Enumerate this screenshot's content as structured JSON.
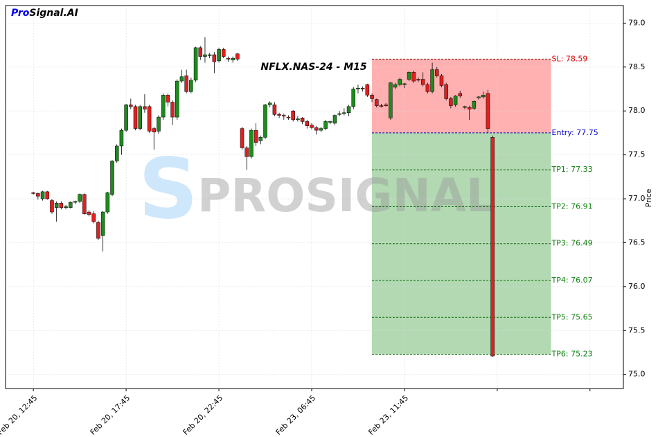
{
  "chart_data": {
    "type": "candlestick",
    "title": "NFLX.NAS-24 - M15",
    "brand": [
      "Pro",
      "Signal.AI"
    ],
    "watermark": "PROSIGNAL",
    "y_label": "Price",
    "xlim": [
      -6,
      127.2
    ],
    "ylim": [
      74.84,
      79.2
    ],
    "xticks": [
      {
        "value": 0,
        "label": "Feb 20, 12:45"
      },
      {
        "value": 20,
        "label": "Feb 20, 17:45"
      },
      {
        "value": 40,
        "label": "Feb 20, 22:45"
      },
      {
        "value": 60,
        "label": "Feb 23, 06:45"
      },
      {
        "value": 80,
        "label": "Feb 23, 11:45"
      },
      {
        "value": 100,
        "label": null
      },
      {
        "value": 120,
        "label": null
      }
    ],
    "yticks": [
      {
        "value": 75,
        "label": "75.0"
      },
      75.5,
      {
        "value": 76,
        "label": "76.0"
      },
      76.5,
      {
        "value": 77,
        "label": "77.0"
      },
      77.5,
      {
        "value": 78,
        "label": "78.0"
      },
      78.5,
      {
        "value": 79,
        "label": "79.0"
      }
    ],
    "grid": true,
    "up_color": "#1f8a1f",
    "down_color": "#e02020",
    "ohlc": [
      [
        77.07,
        77.08,
        77.05,
        77.06
      ],
      [
        77.06,
        77.07,
        76.99,
        77.03
      ],
      [
        77.0,
        77.09,
        76.98,
        77.08
      ],
      [
        77.08,
        77.09,
        76.99,
        77.0
      ],
      [
        76.98,
        77.0,
        76.83,
        76.85
      ],
      [
        76.9,
        76.97,
        76.74,
        76.95
      ],
      [
        76.95,
        76.97,
        76.88,
        76.9
      ],
      [
        76.9,
        76.93,
        76.88,
        76.91
      ],
      [
        76.9,
        76.97,
        76.89,
        76.96
      ],
      [
        76.96,
        76.98,
        76.94,
        76.97
      ],
      [
        76.97,
        77.06,
        76.95,
        77.05
      ],
      [
        77.05,
        77.06,
        76.82,
        76.83
      ],
      [
        76.85,
        76.87,
        76.8,
        76.82
      ],
      [
        76.83,
        76.86,
        76.72,
        76.74
      ],
      [
        76.73,
        76.75,
        76.53,
        76.55
      ],
      [
        76.58,
        76.86,
        76.4,
        76.85
      ],
      [
        76.85,
        77.08,
        76.83,
        77.07
      ],
      [
        77.05,
        77.44,
        77.03,
        77.43
      ],
      [
        77.43,
        77.62,
        77.41,
        77.6
      ],
      [
        77.6,
        77.8,
        77.5,
        77.78
      ],
      [
        77.78,
        78.08,
        77.76,
        78.07
      ],
      [
        78.07,
        78.14,
        78.02,
        78.05
      ],
      [
        78.05,
        78.07,
        77.78,
        77.8
      ],
      [
        77.8,
        78.07,
        77.78,
        78.05
      ],
      [
        78.05,
        78.19,
        77.98,
        78.02
      ],
      [
        78.05,
        78.07,
        77.75,
        77.77
      ],
      [
        77.8,
        77.82,
        77.56,
        77.76
      ],
      [
        77.77,
        77.95,
        77.74,
        77.93
      ],
      [
        77.93,
        78.2,
        77.9,
        78.18
      ],
      [
        78.18,
        78.2,
        78.05,
        78.1
      ],
      [
        78.1,
        78.12,
        77.84,
        77.93
      ],
      [
        77.93,
        78.36,
        77.9,
        78.34
      ],
      [
        78.34,
        78.47,
        78.32,
        78.39
      ],
      [
        78.4,
        78.47,
        78.2,
        78.22
      ],
      [
        78.22,
        78.38,
        78.2,
        78.35
      ],
      [
        78.35,
        78.73,
        78.33,
        78.72
      ],
      [
        78.72,
        78.74,
        78.58,
        78.62
      ],
      [
        78.62,
        78.84,
        78.55,
        78.64
      ],
      [
        78.63,
        78.66,
        78.6,
        78.64
      ],
      [
        78.64,
        78.67,
        78.43,
        78.56
      ],
      [
        78.57,
        78.72,
        78.55,
        78.7
      ],
      [
        78.7,
        78.72,
        78.6,
        78.62
      ],
      [
        78.6,
        78.62,
        78.56,
        78.59
      ],
      [
        78.58,
        78.62,
        78.55,
        78.6
      ],
      [
        78.65,
        78.66,
        78.57,
        78.59
      ],
      [
        77.8,
        77.82,
        77.56,
        77.58
      ],
      [
        77.58,
        77.6,
        77.33,
        77.48
      ],
      [
        77.48,
        77.8,
        77.46,
        77.78
      ],
      [
        77.78,
        77.86,
        77.6,
        77.64
      ],
      [
        77.66,
        77.72,
        77.62,
        77.7
      ],
      [
        77.7,
        78.08,
        77.68,
        78.07
      ],
      [
        78.07,
        78.11,
        78.04,
        78.09
      ],
      [
        78.07,
        78.1,
        77.94,
        77.96
      ],
      [
        77.96,
        77.98,
        77.92,
        77.95
      ],
      [
        77.95,
        77.97,
        77.9,
        77.94
      ],
      [
        77.93,
        77.95,
        77.9,
        77.92
      ],
      [
        78.0,
        78.01,
        77.88,
        77.9
      ],
      [
        77.9,
        77.94,
        77.88,
        77.91
      ],
      [
        77.92,
        77.93,
        77.85,
        77.88
      ],
      [
        77.88,
        77.9,
        77.8,
        77.83
      ],
      [
        77.84,
        77.86,
        77.79,
        77.81
      ],
      [
        77.81,
        77.83,
        77.73,
        77.78
      ],
      [
        77.78,
        77.82,
        77.76,
        77.8
      ],
      [
        77.8,
        77.9,
        77.78,
        77.88
      ],
      [
        77.87,
        77.89,
        77.85,
        77.88
      ],
      [
        77.86,
        77.96,
        77.84,
        77.95
      ],
      [
        77.96,
        78.0,
        77.94,
        77.97
      ],
      [
        77.97,
        78.03,
        77.95,
        77.98
      ],
      [
        77.98,
        78.07,
        77.94,
        78.05
      ],
      [
        78.05,
        78.27,
        78.02,
        78.25
      ],
      [
        78.25,
        78.3,
        78.2,
        78.26
      ],
      [
        78.26,
        78.28,
        78.22,
        78.25
      ],
      [
        78.3,
        78.31,
        78.16,
        78.18
      ],
      [
        78.18,
        78.2,
        78.1,
        78.14
      ],
      [
        78.13,
        78.14,
        78.04,
        78.06
      ],
      [
        78.06,
        78.08,
        78.04,
        78.05
      ],
      [
        78.07,
        78.09,
        78.05,
        78.06
      ],
      [
        77.92,
        78.33,
        77.9,
        78.32
      ],
      [
        78.27,
        78.32,
        78.25,
        78.3
      ],
      [
        78.3,
        78.38,
        78.28,
        78.36
      ],
      [
        78.3,
        78.32,
        78.26,
        78.31
      ],
      [
        78.36,
        78.45,
        78.34,
        78.44
      ],
      [
        78.44,
        78.46,
        78.32,
        78.34
      ],
      [
        78.36,
        78.38,
        78.33,
        78.35
      ],
      [
        78.36,
        78.44,
        78.28,
        78.3
      ],
      [
        78.3,
        78.32,
        78.2,
        78.22
      ],
      [
        78.22,
        78.55,
        78.2,
        78.47
      ],
      [
        78.47,
        78.5,
        78.38,
        78.4
      ],
      [
        78.4,
        78.42,
        78.27,
        78.29
      ],
      [
        78.3,
        78.32,
        78.12,
        78.14
      ],
      [
        78.14,
        78.16,
        78.03,
        78.06
      ],
      [
        78.07,
        78.18,
        78.05,
        78.17
      ],
      [
        78.2,
        78.23,
        78.15,
        78.17
      ],
      [
        78.04,
        78.06,
        78.02,
        78.05
      ],
      [
        78.04,
        78.06,
        77.9,
        78.02
      ],
      [
        78.03,
        78.12,
        78.01,
        78.11
      ],
      [
        78.15,
        78.17,
        78.13,
        78.16
      ],
      [
        78.16,
        78.22,
        78.14,
        78.18
      ],
      [
        78.2,
        78.24,
        77.75,
        77.8
      ],
      [
        77.7,
        77.72,
        75.2,
        75.21
      ]
    ],
    "zones": [
      {
        "from": 73,
        "to": 111.6,
        "low": 77.75,
        "high": 78.59,
        "color": "#ffb0b0"
      },
      {
        "from": 73,
        "to": 111.6,
        "low": 75.23,
        "high": 77.75,
        "color": "#b2d9b2"
      }
    ],
    "levels": [
      {
        "label": "SL: 78.59",
        "value": 78.59,
        "color": "#e00000",
        "line": "#8a1010"
      },
      {
        "label": "Entry: 77.75",
        "value": 77.75,
        "color": "#0000cc",
        "line": "#0000aa"
      },
      {
        "label": "TP1: 77.33",
        "value": 77.33,
        "color": "#108010",
        "line": "#0a6a0a"
      },
      {
        "label": "TP2: 76.91",
        "value": 76.91,
        "color": "#108010",
        "line": "#0a6a0a"
      },
      {
        "label": "TP3: 76.49",
        "value": 76.49,
        "color": "#108010",
        "line": "#0a6a0a"
      },
      {
        "label": "TP4: 76.07",
        "value": 76.07,
        "color": "#108010",
        "line": "#0a6a0a"
      },
      {
        "label": "TP5: 75.65",
        "value": 75.65,
        "color": "#108010",
        "line": "#0a6a0a"
      },
      {
        "label": "TP6: 75.23",
        "value": 75.23,
        "color": "#108010",
        "line": "#0a6a0a"
      }
    ]
  }
}
